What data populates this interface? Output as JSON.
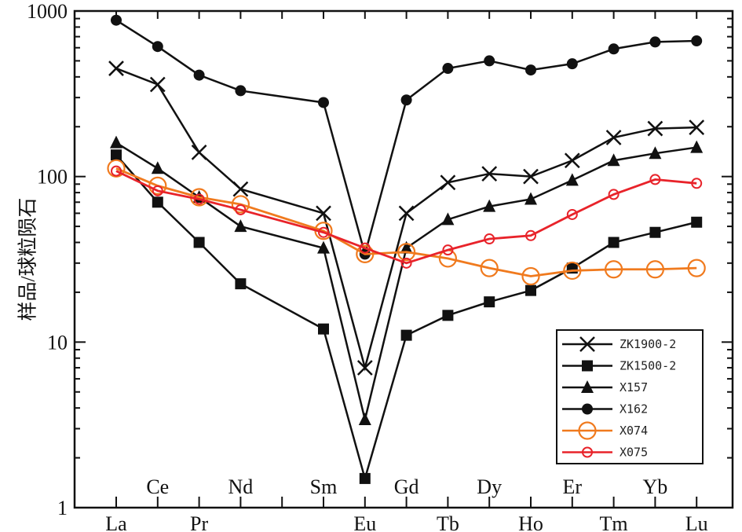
{
  "chart_data": {
    "type": "line",
    "title": "",
    "ylabel": "样品/球粒陨石",
    "xlabel": "",
    "yscale": "log",
    "ylim": [
      1,
      1000
    ],
    "y_ticks": [
      "1",
      "10",
      "100",
      "1000"
    ],
    "categories": [
      "La",
      "Ce",
      "Pr",
      "Nd",
      "Sm",
      "Eu",
      "Gd",
      "Tb",
      "Dy",
      "Ho",
      "Er",
      "Tm",
      "Yb",
      "Lu"
    ],
    "legend_position": "bottom-right",
    "series": [
      {
        "name": "ZK1900-2",
        "color": "#111111",
        "marker": "x",
        "indices": [
          0,
          1,
          2,
          3,
          5,
          6,
          7,
          8,
          9,
          10,
          11,
          12,
          13,
          14
        ],
        "values": [
          450,
          360,
          140,
          84,
          60,
          7,
          60,
          92,
          104,
          100,
          125,
          172,
          195,
          198
        ]
      },
      {
        "name": "ZK1500-2",
        "color": "#111111",
        "marker": "square",
        "indices": [
          0,
          1,
          2,
          3,
          5,
          6,
          7,
          8,
          9,
          10,
          11,
          12,
          13,
          14
        ],
        "values": [
          135,
          70,
          40,
          22.5,
          12,
          1.5,
          11,
          14.5,
          17.5,
          20.5,
          28,
          40,
          46,
          53
        ]
      },
      {
        "name": "X157",
        "color": "#111111",
        "marker": "triangle",
        "indices": [
          0,
          1,
          2,
          3,
          5,
          6,
          7,
          8,
          9,
          10,
          11,
          12,
          13,
          14
        ],
        "values": [
          160,
          112,
          75,
          50,
          37,
          3.4,
          37,
          55,
          66,
          73,
          95,
          125,
          138,
          150
        ]
      },
      {
        "name": "X162",
        "color": "#111111",
        "marker": "circle",
        "indices": [
          0,
          1,
          2,
          3,
          5,
          6,
          7,
          8,
          9,
          10,
          11,
          12,
          13,
          14
        ],
        "values": [
          880,
          610,
          410,
          330,
          280,
          34,
          290,
          450,
          500,
          440,
          480,
          590,
          650,
          660
        ]
      },
      {
        "name": "X074",
        "color": "#f07a1e",
        "marker": "open-circle-large",
        "indices": [
          0,
          1,
          2,
          3,
          5,
          6,
          7,
          8,
          9,
          10,
          11,
          12,
          13,
          14
        ],
        "values": [
          112,
          88,
          75,
          68,
          47,
          34,
          35,
          32,
          28,
          25,
          27,
          27.5,
          27.5,
          28
        ]
      },
      {
        "name": "X075",
        "color": "#e8232a",
        "marker": "open-circle",
        "indices": [
          0,
          1,
          2,
          3,
          5,
          6,
          7,
          8,
          9,
          10,
          11,
          12,
          13,
          14
        ],
        "values": [
          108,
          82,
          73,
          63,
          46,
          37,
          30,
          36,
          42,
          44,
          59,
          78,
          96,
          91
        ]
      }
    ]
  }
}
